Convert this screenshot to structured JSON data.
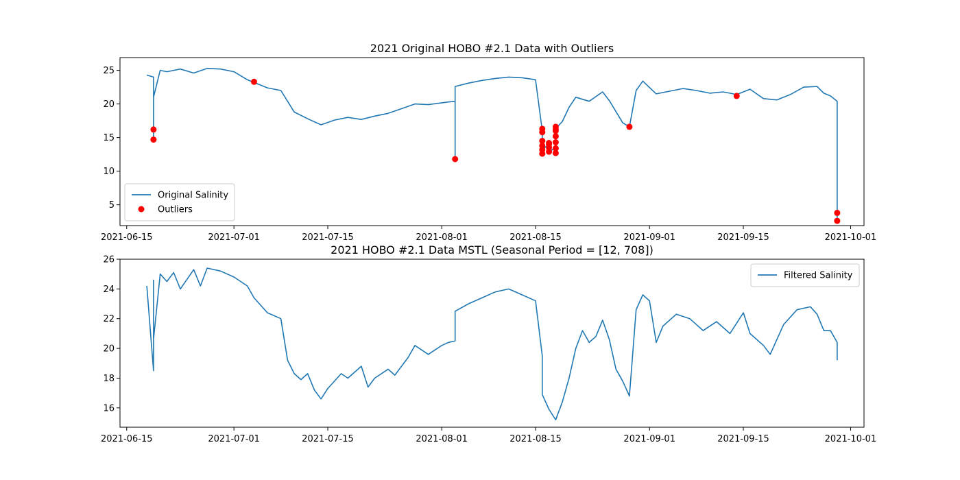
{
  "chart_data": [
    {
      "type": "line",
      "title": "2021 Original HOBO #2.1 Data with Outliers",
      "xlabel": "",
      "ylabel": "",
      "x_type": "date",
      "xlim": [
        "2021-06-14",
        "2021-10-03"
      ],
      "ylim": [
        1.9,
        26.9
      ],
      "x_ticks": [
        "2021-06-15",
        "2021-07-01",
        "2021-07-15",
        "2021-08-01",
        "2021-08-15",
        "2021-09-01",
        "2021-09-15",
        "2021-10-01"
      ],
      "y_ticks": [
        5,
        10,
        15,
        20,
        25
      ],
      "legend": "lower-left",
      "grid": false,
      "series": [
        {
          "name": "Original Salinity",
          "style": "line",
          "color": "#1f77b4",
          "points": [
            [
              "2021-06-18",
              24.3
            ],
            [
              "2021-06-19",
              24.0
            ],
            [
              "2021-06-19",
              16.2
            ],
            [
              "2021-06-19",
              14.7
            ],
            [
              "2021-06-19",
              21.0
            ],
            [
              "2021-06-20",
              25.0
            ],
            [
              "2021-06-21",
              24.8
            ],
            [
              "2021-06-23",
              25.2
            ],
            [
              "2021-06-25",
              24.6
            ],
            [
              "2021-06-27",
              25.3
            ],
            [
              "2021-06-29",
              25.2
            ],
            [
              "2021-07-01",
              24.8
            ],
            [
              "2021-07-03",
              23.6
            ],
            [
              "2021-07-04",
              23.2
            ],
            [
              "2021-07-06",
              22.4
            ],
            [
              "2021-07-08",
              22.0
            ],
            [
              "2021-07-09",
              20.4
            ],
            [
              "2021-07-10",
              18.8
            ],
            [
              "2021-07-12",
              17.8
            ],
            [
              "2021-07-14",
              16.9
            ],
            [
              "2021-07-16",
              17.6
            ],
            [
              "2021-07-18",
              18.0
            ],
            [
              "2021-07-20",
              17.7
            ],
            [
              "2021-07-22",
              18.2
            ],
            [
              "2021-07-24",
              18.6
            ],
            [
              "2021-07-26",
              19.3
            ],
            [
              "2021-07-28",
              20.0
            ],
            [
              "2021-07-30",
              19.9
            ],
            [
              "2021-08-02",
              20.3
            ],
            [
              "2021-08-03",
              20.4
            ],
            [
              "2021-08-03",
              11.8
            ],
            [
              "2021-08-03",
              22.6
            ],
            [
              "2021-08-05",
              23.1
            ],
            [
              "2021-08-07",
              23.5
            ],
            [
              "2021-08-09",
              23.8
            ],
            [
              "2021-08-11",
              24.0
            ],
            [
              "2021-08-13",
              23.9
            ],
            [
              "2021-08-15",
              23.6
            ],
            [
              "2021-08-16",
              16.0
            ],
            [
              "2021-08-16",
              13.2
            ],
            [
              "2021-08-17",
              14.0
            ],
            [
              "2021-08-17",
              12.8
            ],
            [
              "2021-08-18",
              13.6
            ],
            [
              "2021-08-18",
              16.3
            ],
            [
              "2021-08-19",
              17.4
            ],
            [
              "2021-08-20",
              19.5
            ],
            [
              "2021-08-21",
              21.0
            ],
            [
              "2021-08-23",
              20.4
            ],
            [
              "2021-08-25",
              21.8
            ],
            [
              "2021-08-26",
              20.5
            ],
            [
              "2021-08-28",
              17.2
            ],
            [
              "2021-08-29",
              16.6
            ],
            [
              "2021-08-30",
              22.0
            ],
            [
              "2021-08-31",
              23.4
            ],
            [
              "2021-09-02",
              21.5
            ],
            [
              "2021-09-04",
              21.9
            ],
            [
              "2021-09-06",
              22.3
            ],
            [
              "2021-09-08",
              22.0
            ],
            [
              "2021-09-10",
              21.6
            ],
            [
              "2021-09-12",
              21.8
            ],
            [
              "2021-09-14",
              21.4
            ],
            [
              "2021-09-16",
              22.2
            ],
            [
              "2021-09-18",
              20.8
            ],
            [
              "2021-09-20",
              20.6
            ],
            [
              "2021-09-22",
              21.4
            ],
            [
              "2021-09-24",
              22.5
            ],
            [
              "2021-09-26",
              22.6
            ],
            [
              "2021-09-27",
              21.6
            ],
            [
              "2021-09-28",
              21.2
            ],
            [
              "2021-09-29",
              20.4
            ],
            [
              "2021-09-29",
              19.3
            ],
            [
              "2021-09-29",
              3.8
            ],
            [
              "2021-09-29",
              2.6
            ]
          ]
        },
        {
          "name": "Outliers",
          "style": "scatter",
          "color": "#ff0000",
          "points": [
            [
              "2021-06-19",
              16.2
            ],
            [
              "2021-06-19",
              14.7
            ],
            [
              "2021-07-04",
              23.3
            ],
            [
              "2021-08-03",
              11.8
            ],
            [
              "2021-08-16",
              16.3
            ],
            [
              "2021-08-16",
              15.8
            ],
            [
              "2021-08-16",
              14.5
            ],
            [
              "2021-08-16",
              13.8
            ],
            [
              "2021-08-16",
              13.2
            ],
            [
              "2021-08-16",
              12.6
            ],
            [
              "2021-08-17",
              13.5
            ],
            [
              "2021-08-17",
              14.2
            ],
            [
              "2021-08-17",
              12.9
            ],
            [
              "2021-08-17",
              14.0
            ],
            [
              "2021-08-18",
              12.7
            ],
            [
              "2021-08-18",
              13.4
            ],
            [
              "2021-08-18",
              14.3
            ],
            [
              "2021-08-18",
              15.2
            ],
            [
              "2021-08-18",
              16.0
            ],
            [
              "2021-08-18",
              16.6
            ],
            [
              "2021-08-18",
              16.2
            ],
            [
              "2021-08-29",
              16.6
            ],
            [
              "2021-09-14",
              21.2
            ],
            [
              "2021-09-29",
              3.8
            ],
            [
              "2021-09-29",
              2.6
            ]
          ]
        }
      ]
    },
    {
      "type": "line",
      "title": "2021 HOBO #2.1 Data MSTL (Seasonal Period = [12, 708])",
      "xlabel": "",
      "ylabel": "",
      "x_type": "date",
      "xlim": [
        "2021-06-14",
        "2021-10-03"
      ],
      "ylim": [
        14.7,
        26.0
      ],
      "x_ticks": [
        "2021-06-15",
        "2021-07-01",
        "2021-07-15",
        "2021-08-01",
        "2021-08-15",
        "2021-09-01",
        "2021-09-15",
        "2021-10-01"
      ],
      "y_ticks": [
        16,
        18,
        20,
        22,
        24,
        26
      ],
      "legend": "upper-right",
      "grid": false,
      "series": [
        {
          "name": "Filtered Salinity",
          "style": "line",
          "color": "#1f77b4",
          "points": [
            [
              "2021-06-18",
              24.2
            ],
            [
              "2021-06-19",
              18.5
            ],
            [
              "2021-06-19",
              24.6
            ],
            [
              "2021-06-19",
              20.6
            ],
            [
              "2021-06-20",
              25.0
            ],
            [
              "2021-06-21",
              24.5
            ],
            [
              "2021-06-22",
              25.1
            ],
            [
              "2021-06-23",
              24.0
            ],
            [
              "2021-06-25",
              25.3
            ],
            [
              "2021-06-26",
              24.2
            ],
            [
              "2021-06-27",
              25.4
            ],
            [
              "2021-06-29",
              25.2
            ],
            [
              "2021-07-01",
              24.8
            ],
            [
              "2021-07-03",
              24.2
            ],
            [
              "2021-07-04",
              23.4
            ],
            [
              "2021-07-06",
              22.4
            ],
            [
              "2021-07-08",
              22.0
            ],
            [
              "2021-07-09",
              19.2
            ],
            [
              "2021-07-10",
              18.3
            ],
            [
              "2021-07-11",
              17.9
            ],
            [
              "2021-07-12",
              18.3
            ],
            [
              "2021-07-13",
              17.2
            ],
            [
              "2021-07-14",
              16.6
            ],
            [
              "2021-07-15",
              17.3
            ],
            [
              "2021-07-17",
              18.3
            ],
            [
              "2021-07-18",
              18.0
            ],
            [
              "2021-07-20",
              18.8
            ],
            [
              "2021-07-21",
              17.4
            ],
            [
              "2021-07-22",
              18.0
            ],
            [
              "2021-07-24",
              18.6
            ],
            [
              "2021-07-25",
              18.2
            ],
            [
              "2021-07-27",
              19.4
            ],
            [
              "2021-07-28",
              20.2
            ],
            [
              "2021-07-30",
              19.6
            ],
            [
              "2021-08-01",
              20.2
            ],
            [
              "2021-08-02",
              20.4
            ],
            [
              "2021-08-03",
              20.5
            ],
            [
              "2021-08-03",
              22.5
            ],
            [
              "2021-08-05",
              23.0
            ],
            [
              "2021-08-07",
              23.4
            ],
            [
              "2021-08-09",
              23.8
            ],
            [
              "2021-08-11",
              24.0
            ],
            [
              "2021-08-13",
              23.6
            ],
            [
              "2021-08-15",
              23.2
            ],
            [
              "2021-08-16",
              19.5
            ],
            [
              "2021-08-16",
              16.9
            ],
            [
              "2021-08-17",
              15.9
            ],
            [
              "2021-08-18",
              15.2
            ],
            [
              "2021-08-19",
              16.4
            ],
            [
              "2021-08-20",
              18.0
            ],
            [
              "2021-08-21",
              20.0
            ],
            [
              "2021-08-22",
              21.2
            ],
            [
              "2021-08-23",
              20.4
            ],
            [
              "2021-08-24",
              20.8
            ],
            [
              "2021-08-25",
              21.9
            ],
            [
              "2021-08-26",
              20.6
            ],
            [
              "2021-08-27",
              18.6
            ],
            [
              "2021-08-28",
              17.8
            ],
            [
              "2021-08-29",
              16.8
            ],
            [
              "2021-08-30",
              22.6
            ],
            [
              "2021-08-31",
              23.6
            ],
            [
              "2021-09-01",
              23.2
            ],
            [
              "2021-09-02",
              20.4
            ],
            [
              "2021-09-03",
              21.5
            ],
            [
              "2021-09-05",
              22.3
            ],
            [
              "2021-09-07",
              22.0
            ],
            [
              "2021-09-09",
              21.2
            ],
            [
              "2021-09-11",
              21.8
            ],
            [
              "2021-09-13",
              21.0
            ],
            [
              "2021-09-15",
              22.4
            ],
            [
              "2021-09-16",
              21.0
            ],
            [
              "2021-09-18",
              20.2
            ],
            [
              "2021-09-19",
              19.6
            ],
            [
              "2021-09-21",
              21.6
            ],
            [
              "2021-09-23",
              22.6
            ],
            [
              "2021-09-25",
              22.8
            ],
            [
              "2021-09-26",
              22.3
            ],
            [
              "2021-09-27",
              21.2
            ],
            [
              "2021-09-28",
              21.2
            ],
            [
              "2021-09-29",
              20.4
            ],
            [
              "2021-09-29",
              19.2
            ]
          ]
        }
      ]
    }
  ]
}
